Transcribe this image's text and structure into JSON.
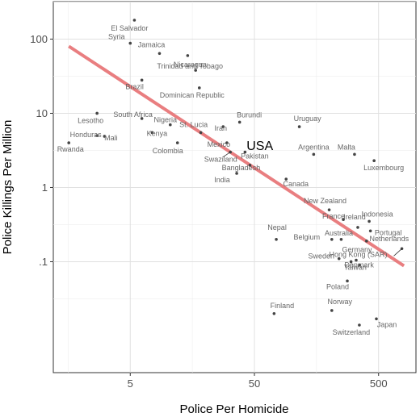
{
  "chart_data": {
    "type": "scatter",
    "xlabel": "Police Per Homicide",
    "ylabel": "Police Killings Per Million",
    "x_scale": "log",
    "y_scale": "log",
    "xlim": [
      1.2,
      1000
    ],
    "ylim": [
      0.0032,
      320
    ],
    "x_ticks": [
      {
        "value": 5,
        "label": "5"
      },
      {
        "value": 50,
        "label": "50"
      },
      {
        "value": 500,
        "label": "500"
      }
    ],
    "y_ticks": [
      {
        "value": 0.1,
        "label": ".1"
      },
      {
        "value": 1,
        "label": "1"
      },
      {
        "value": 10,
        "label": "10"
      },
      {
        "value": 100,
        "label": "100"
      }
    ],
    "grid": true,
    "point_color": "#444444",
    "fit_line": {
      "color": "#e8787a",
      "x": [
        1.6,
        800
      ],
      "y": [
        80,
        0.088
      ]
    },
    "highlight": {
      "label": "USA",
      "x": 34,
      "y": 2.9,
      "color": "#000000"
    },
    "points": [
      {
        "label": "El Salvador",
        "x": 5.4,
        "y": 180
      },
      {
        "label": "Syria",
        "x": 5.0,
        "y": 88
      },
      {
        "label": "Jamaica",
        "x": 8.6,
        "y": 64
      },
      {
        "label": "Nicaragua",
        "x": 14.5,
        "y": 60
      },
      {
        "label": "Brazil",
        "x": 6.2,
        "y": 28
      },
      {
        "label": "Trinidad and Tobago",
        "x": 16.8,
        "y": 38
      },
      {
        "label": "Dominican Republic",
        "x": 18.0,
        "y": 22
      },
      {
        "label": "South Africa",
        "x": 6.2,
        "y": 8.5
      },
      {
        "label": "Lesotho",
        "x": 2.7,
        "y": 10
      },
      {
        "label": "Honduras",
        "x": 2.7,
        "y": 5
      },
      {
        "label": "Mali",
        "x": 3.1,
        "y": 4.9
      },
      {
        "label": "Rwanda",
        "x": 1.6,
        "y": 4.0
      },
      {
        "label": "Nigeria",
        "x": 10.5,
        "y": 7.0
      },
      {
        "label": "Kenya",
        "x": 7.5,
        "y": 5.5
      },
      {
        "label": "Colombia",
        "x": 12.0,
        "y": 4.0
      },
      {
        "label": "St. Lucia",
        "x": 18.5,
        "y": 5.5
      },
      {
        "label": "Iran",
        "x": 28,
        "y": 6.6
      },
      {
        "label": "Burundi",
        "x": 38,
        "y": 7.6
      },
      {
        "label": "Uruguay",
        "x": 115,
        "y": 6.6
      },
      {
        "label": "Mexico",
        "x": 30,
        "y": 4.0
      },
      {
        "label": "Pakistan",
        "x": 42,
        "y": 3.0
      },
      {
        "label": "Swaziland",
        "x": 32,
        "y": 3.0
      },
      {
        "label": "Bangladesh",
        "x": 46,
        "y": 2.0
      },
      {
        "label": "India",
        "x": 36,
        "y": 1.55
      },
      {
        "label": "Argentina",
        "x": 150,
        "y": 2.8
      },
      {
        "label": "Malta",
        "x": 320,
        "y": 2.8
      },
      {
        "label": "Luxembourg",
        "x": 460,
        "y": 2.3
      },
      {
        "label": "Canada",
        "x": 90,
        "y": 1.3
      },
      {
        "label": "New Zealand",
        "x": 200,
        "y": 0.5
      },
      {
        "label": "France",
        "x": 260,
        "y": 0.37
      },
      {
        "label": "Indonesia",
        "x": 420,
        "y": 0.35
      },
      {
        "label": "Ireland",
        "x": 340,
        "y": 0.29
      },
      {
        "label": "Portugal",
        "x": 430,
        "y": 0.26
      },
      {
        "label": "Netherlands",
        "x": 400,
        "y": 0.19
      },
      {
        "label": "Nepal",
        "x": 75,
        "y": 0.2
      },
      {
        "label": "Belgium",
        "x": 210,
        "y": 0.2
      },
      {
        "label": "Australia",
        "x": 250,
        "y": 0.2
      },
      {
        "label": "Sweden",
        "x": 240,
        "y": 0.11
      },
      {
        "label": "Germany",
        "x": 330,
        "y": 0.105
      },
      {
        "label": "Hong Kong (SAR)",
        "x": 770,
        "y": 0.15
      },
      {
        "label": "Denmark",
        "x": 300,
        "y": 0.1
      },
      {
        "label": "Taiwan",
        "x": 350,
        "y": 0.09
      },
      {
        "label": "Poland",
        "x": 280,
        "y": 0.055
      },
      {
        "label": "Finland",
        "x": 72,
        "y": 0.02
      },
      {
        "label": "Norway",
        "x": 210,
        "y": 0.022
      },
      {
        "label": "Japan",
        "x": 480,
        "y": 0.017
      },
      {
        "label": "Switzerland",
        "x": 350,
        "y": 0.014
      }
    ]
  }
}
